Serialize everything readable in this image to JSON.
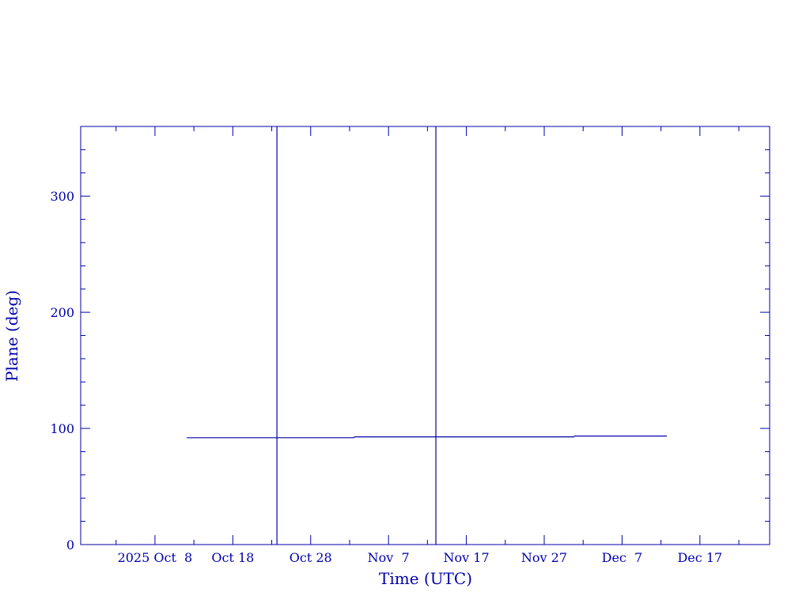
{
  "chart_data": {
    "type": "line",
    "title": "",
    "xlabel": "Time (UTC)",
    "ylabel": "Plane (deg)",
    "xlim": [
      "2025-09-28T11:00Z",
      "2025-12-25T23:00Z"
    ],
    "ylim": [
      0,
      360
    ],
    "yticks": [
      0,
      100,
      200,
      300
    ],
    "xticks": [
      {
        "date": "2025-10-08T00:00Z",
        "label": "2025 Oct  8"
      },
      {
        "date": "2025-10-18T00:00Z",
        "label": "Oct 18"
      },
      {
        "date": "2025-10-28T00:00Z",
        "label": "Oct 28"
      },
      {
        "date": "2025-11-07T00:00Z",
        "label": "Nov  7"
      },
      {
        "date": "2025-11-17T00:00Z",
        "label": "Nov 17"
      },
      {
        "date": "2025-11-27T00:00Z",
        "label": "Nov 27"
      },
      {
        "date": "2025-12-07T00:00Z",
        "label": "Dec  7"
      },
      {
        "date": "2025-12-17T00:00Z",
        "label": "Dec 17"
      }
    ],
    "grid": false,
    "color": "#0000aa",
    "series": [
      {
        "segments": [
          {
            "start": "2025-10-12T02:00Z",
            "end": "2025-11-02T14:00Z",
            "value": 92.0
          },
          {
            "start": "2025-11-02T14:00Z",
            "end": "2025-11-30T20:00Z",
            "value": 92.7
          },
          {
            "start": "2025-11-30T20:00Z",
            "end": "2025-12-12T18:00Z",
            "value": 93.4
          }
        ]
      }
    ],
    "vertical_markers": [
      "2025-10-23T16:00Z",
      "2025-11-13T02:00Z"
    ]
  }
}
